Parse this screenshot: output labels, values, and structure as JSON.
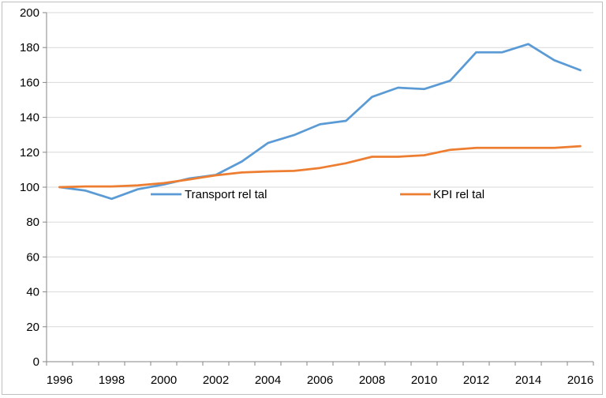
{
  "chart_data": {
    "type": "line",
    "title": "",
    "xlabel": "",
    "ylabel": "",
    "x": [
      1996,
      1997,
      1998,
      1999,
      2000,
      2001,
      2002,
      2003,
      2004,
      2005,
      2006,
      2007,
      2008,
      2009,
      2010,
      2011,
      2012,
      2013,
      2014,
      2015,
      2016
    ],
    "x_ticks": [
      "1996",
      "1998",
      "2000",
      "2002",
      "2004",
      "2006",
      "2008",
      "2010",
      "2012",
      "2014",
      "2016"
    ],
    "y_ticks": [
      "0",
      "20",
      "40",
      "60",
      "80",
      "100",
      "120",
      "140",
      "160",
      "180",
      "200"
    ],
    "ylim": [
      0,
      200
    ],
    "grid": "horizontal",
    "legend_position": "inside, center",
    "series": [
      {
        "name": "Transport rel tal",
        "color": "#5b9bd5",
        "values": [
          100.0,
          98.0,
          93.3,
          98.8,
          101.5,
          105.0,
          107.0,
          114.7,
          125.3,
          129.8,
          136.0,
          138.0,
          151.7,
          157.0,
          156.2,
          161.0,
          177.3,
          177.3,
          182.0,
          172.7,
          167.0
        ]
      },
      {
        "name": "KPI rel tal",
        "color": "#ed7d31",
        "values": [
          100.0,
          100.4,
          100.4,
          101.0,
          102.3,
          104.5,
          106.8,
          108.4,
          109.0,
          109.3,
          111.0,
          113.7,
          117.4,
          117.4,
          118.3,
          121.4,
          122.5,
          122.5,
          122.5,
          122.5,
          123.5
        ]
      }
    ]
  }
}
